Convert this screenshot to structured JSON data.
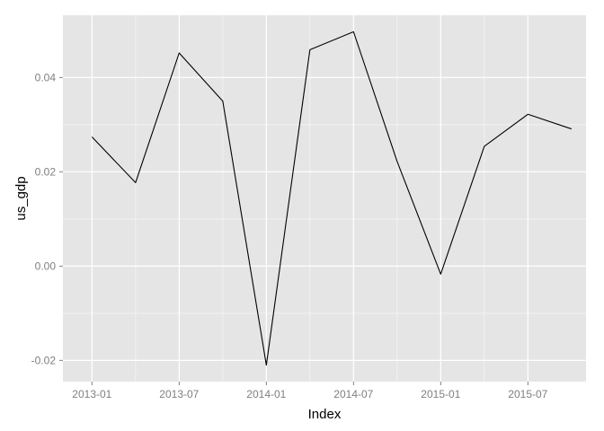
{
  "chart_data": {
    "type": "line",
    "title": "",
    "xlabel": "Index",
    "ylabel": "us_gdp",
    "x": [
      "2013-01",
      "2013-04",
      "2013-07",
      "2013-10",
      "2014-01",
      "2014-04",
      "2014-07",
      "2014-10",
      "2015-01",
      "2015-04",
      "2015-07",
      "2015-10"
    ],
    "series": [
      {
        "values": [
          0.0274,
          0.0177,
          0.0452,
          0.035,
          -0.021,
          0.0459,
          0.0497,
          0.0222,
          -0.0017,
          0.0254,
          0.0322,
          0.0291
        ]
      }
    ],
    "x_tick_labels": [
      "2013-01",
      "2013-07",
      "2014-01",
      "2014-07",
      "2015-01",
      "2015-07"
    ],
    "y_tick_labels": [
      "-0.02",
      "0.00",
      "0.02",
      "0.04"
    ],
    "y_ticks": [
      -0.02,
      0.0,
      0.02,
      0.04
    ],
    "ylim": [
      -0.0245,
      0.0532
    ],
    "xlim": [
      "2012-11",
      "2015-11"
    ],
    "grid": true,
    "colors": {
      "panel": "#e5e5e5",
      "grid_major": "#ffffff",
      "grid_minor": "#f2f2f2",
      "line": "#000000",
      "tick_text": "#7f7f7f"
    }
  }
}
